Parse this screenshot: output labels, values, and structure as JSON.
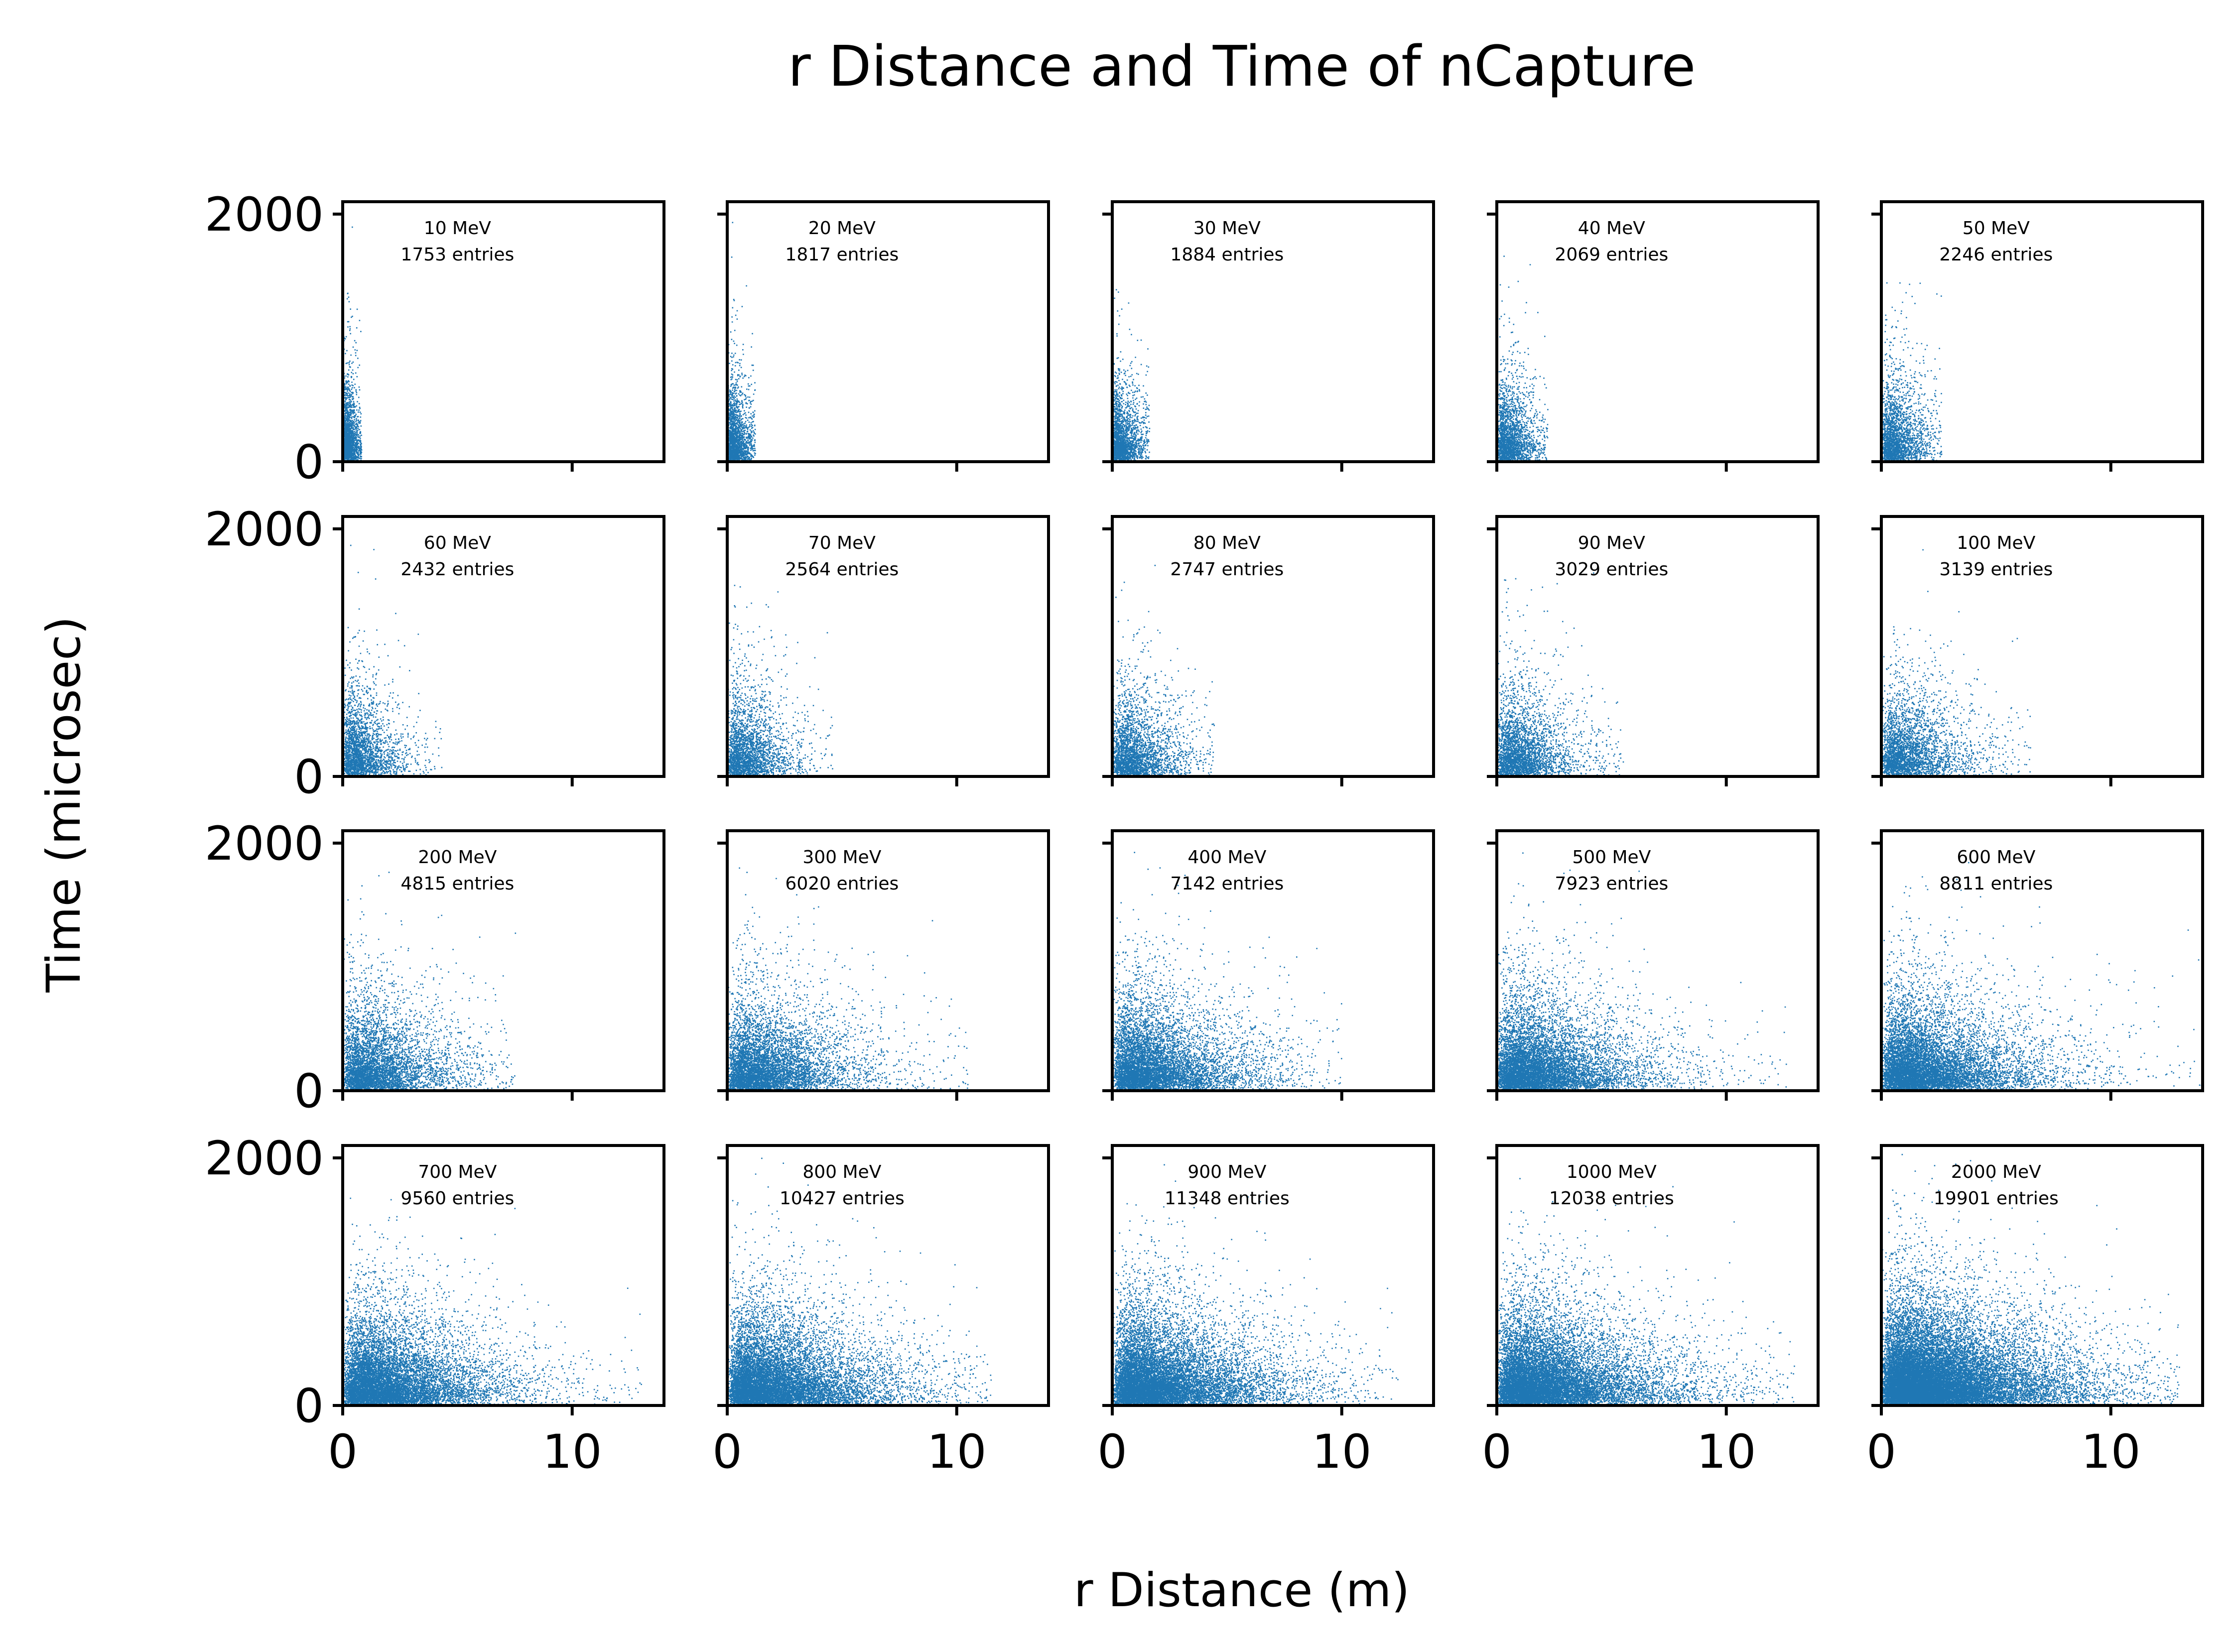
{
  "figure": {
    "title": "r Distance and Time of nCapture",
    "xlabel": "r Distance (m)",
    "ylabel": "Time (microsec)"
  },
  "colors": {
    "points": "#1f77b4",
    "frame": "#000000",
    "background": "#ffffff"
  },
  "chart_data": {
    "type": "scatter",
    "grid": false,
    "layout": {
      "rows": 4,
      "cols": 5,
      "sharex": true,
      "sharey": true
    },
    "xlim": [
      0,
      14
    ],
    "ylim": [
      0,
      2100
    ],
    "xticks": [
      0,
      10
    ],
    "yticks": [
      0,
      2000
    ],
    "panels": [
      {
        "energy": "10 MeV",
        "entries": "1753 entries",
        "n": 1753,
        "r_mean": 0.25,
        "t_mean": 200,
        "r_max": 0.8
      },
      {
        "energy": "20 MeV",
        "entries": "1817 entries",
        "n": 1817,
        "r_mean": 0.35,
        "t_mean": 200,
        "r_max": 1.2
      },
      {
        "energy": "30 MeV",
        "entries": "1884 entries",
        "n": 1884,
        "r_mean": 0.45,
        "t_mean": 200,
        "r_max": 1.6
      },
      {
        "energy": "40 MeV",
        "entries": "2069 entries",
        "n": 2069,
        "r_mean": 0.6,
        "t_mean": 210,
        "r_max": 2.2
      },
      {
        "energy": "50 MeV",
        "entries": "2246 entries",
        "n": 2246,
        "r_mean": 0.7,
        "t_mean": 210,
        "r_max": 2.6
      },
      {
        "energy": "60 MeV",
        "entries": "2432 entries",
        "n": 2432,
        "r_mean": 0.8,
        "t_mean": 210,
        "r_max": 4.3
      },
      {
        "energy": "70 MeV",
        "entries": "2564 entries",
        "n": 2564,
        "r_mean": 0.9,
        "t_mean": 210,
        "r_max": 4.6
      },
      {
        "energy": "80 MeV",
        "entries": "2747 entries",
        "n": 2747,
        "r_mean": 1.0,
        "t_mean": 210,
        "r_max": 4.5
      },
      {
        "energy": "90 MeV",
        "entries": "3029 entries",
        "n": 3029,
        "r_mean": 1.1,
        "t_mean": 210,
        "r_max": 5.5
      },
      {
        "energy": "100 MeV",
        "entries": "3139 entries",
        "n": 3139,
        "r_mean": 1.2,
        "t_mean": 210,
        "r_max": 6.5
      },
      {
        "energy": "200 MeV",
        "entries": "4815 entries",
        "n": 4815,
        "r_mean": 1.5,
        "t_mean": 220,
        "r_max": 7.5
      },
      {
        "energy": "300 MeV",
        "entries": "6020 entries",
        "n": 6020,
        "r_mean": 1.7,
        "t_mean": 220,
        "r_max": 10.5
      },
      {
        "energy": "400 MeV",
        "entries": "7142 entries",
        "n": 7142,
        "r_mean": 1.8,
        "t_mean": 220,
        "r_max": 10.0
      },
      {
        "energy": "500 MeV",
        "entries": "7923 entries",
        "n": 7923,
        "r_mean": 1.9,
        "t_mean": 220,
        "r_max": 13.0
      },
      {
        "energy": "600 MeV",
        "entries": "8811 entries",
        "n": 8811,
        "r_mean": 2.0,
        "t_mean": 220,
        "r_max": 14.0
      },
      {
        "energy": "700 MeV",
        "entries": "9560 entries",
        "n": 9560,
        "r_mean": 2.0,
        "t_mean": 220,
        "r_max": 13.0
      },
      {
        "energy": "800 MeV",
        "entries": "10427 entries",
        "n": 10427,
        "r_mean": 2.1,
        "t_mean": 220,
        "r_max": 11.5
      },
      {
        "energy": "900 MeV",
        "entries": "11348 entries",
        "n": 11348,
        "r_mean": 2.1,
        "t_mean": 220,
        "r_max": 12.5
      },
      {
        "energy": "1000 MeV",
        "entries": "12038 entries",
        "n": 12038,
        "r_mean": 2.2,
        "t_mean": 220,
        "r_max": 13.0
      },
      {
        "energy": "2000 MeV",
        "entries": "19901 entries",
        "n": 19901,
        "r_mean": 2.3,
        "t_mean": 230,
        "r_max": 13.0
      }
    ]
  }
}
